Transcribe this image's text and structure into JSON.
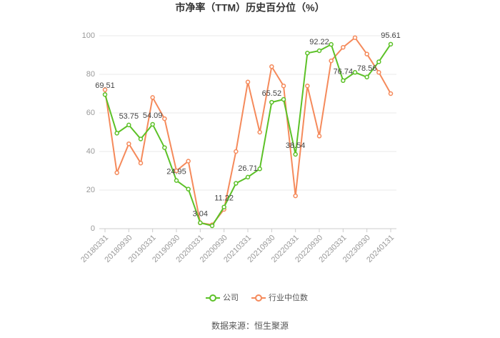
{
  "chart_data": {
    "type": "line",
    "title": "市净率（TTM）历史百分位（%）",
    "source": "数据来源：恒生聚源",
    "categories": [
      "20180331",
      null,
      "20180930",
      null,
      "20190331",
      null,
      "20190930",
      null,
      "20200331",
      null,
      "20200930",
      null,
      "20210331",
      null,
      "20210930",
      null,
      "20220331",
      null,
      "20220930",
      null,
      "20230331",
      null,
      "20230930",
      null,
      "20240131"
    ],
    "series": [
      {
        "name": "公司",
        "color": "#5cc127",
        "values": [
          69.51,
          49.5,
          53.75,
          46.5,
          54.09,
          42,
          24.95,
          20.5,
          3.04,
          1.5,
          11.22,
          23.5,
          26.71,
          31,
          65.52,
          67,
          38.54,
          91,
          92.22,
          95.5,
          76.74,
          81,
          78.56,
          86.5,
          95.61
        ],
        "value_labels": [
          "69.51",
          null,
          "53.75",
          null,
          "54.09",
          null,
          "24.95",
          null,
          "3.04",
          null,
          "11.22",
          null,
          "26.71",
          null,
          "65.52",
          null,
          "38.54",
          null,
          "92.22",
          null,
          "76.74",
          null,
          "78.56",
          null,
          "95.61"
        ]
      },
      {
        "name": "行业中位数",
        "color": "#f58a5b",
        "values": [
          72,
          29,
          44,
          34,
          68,
          57,
          30,
          35,
          3,
          2,
          10,
          40,
          76,
          50,
          84,
          74,
          17,
          74,
          48,
          87,
          94,
          99,
          90.5,
          81,
          70
        ]
      }
    ],
    "ylim": [
      0,
      100
    ],
    "yticks": [
      0,
      20,
      40,
      60,
      80,
      100
    ],
    "grid": true
  }
}
